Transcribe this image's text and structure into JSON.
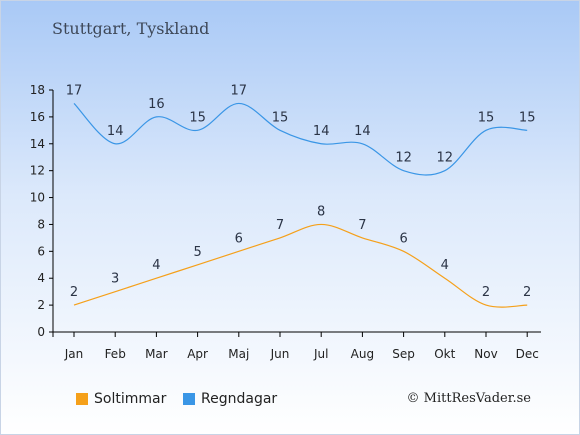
{
  "header": {
    "title": "Stuttgart, Tyskland"
  },
  "footer": {
    "copyright": "© MittResVader.se"
  },
  "chart_data": {
    "type": "line",
    "categories": [
      "Jan",
      "Feb",
      "Mar",
      "Apr",
      "Maj",
      "Jun",
      "Jul",
      "Aug",
      "Sep",
      "Okt",
      "Nov",
      "Dec"
    ],
    "ylim": [
      0,
      18
    ],
    "yticks": [
      0,
      2,
      4,
      6,
      8,
      10,
      12,
      14,
      16,
      18
    ],
    "grid": false,
    "legend_position": "bottom-left",
    "series": [
      {
        "name": "Soltimmar",
        "color": "#f5a01a",
        "values": [
          2,
          3,
          4,
          5,
          6,
          7,
          8,
          7,
          6,
          4,
          2,
          2
        ]
      },
      {
        "name": "Regndagar",
        "color": "#3a96e6",
        "values": [
          17,
          14,
          16,
          15,
          17,
          15,
          14,
          14,
          12,
          12,
          15,
          15
        ]
      }
    ]
  }
}
